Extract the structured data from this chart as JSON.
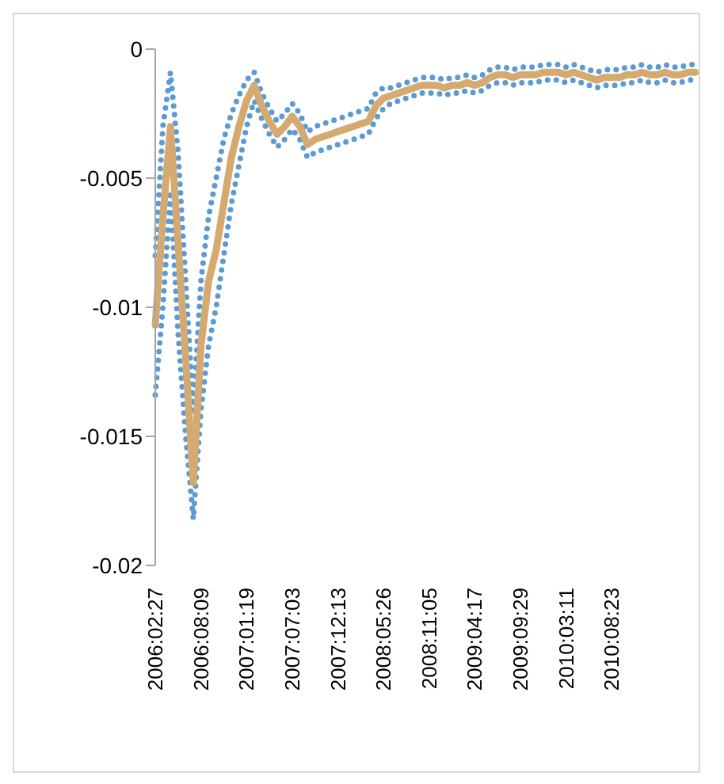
{
  "chart_data": {
    "type": "line",
    "marker": "none",
    "categories": [
      "2006:02:27",
      null,
      null,
      null,
      null,
      null,
      "2006:08:09",
      null,
      null,
      null,
      null,
      null,
      "2007:01:19",
      null,
      null,
      null,
      null,
      null,
      "2007:07:03",
      null,
      null,
      null,
      null,
      null,
      "2007:12:13",
      null,
      null,
      null,
      null,
      null,
      "2008:05:26",
      null,
      null,
      null,
      null,
      null,
      "2008:11:05",
      null,
      null,
      null,
      null,
      null,
      "2009:04:17",
      null,
      null,
      null,
      null,
      null,
      "2009:09:29",
      null,
      null,
      null,
      null,
      null,
      "2010:03:11",
      null,
      null,
      null,
      null,
      null,
      "2010:08:23",
      null,
      null,
      null,
      null,
      null,
      null,
      null,
      null,
      null,
      null,
      null
    ],
    "ylim": [
      -0.02,
      0
    ],
    "yticks": [
      -0.02,
      -0.015,
      -0.01,
      -0.005,
      0
    ],
    "series": [
      {
        "color": "#5b9bd5",
        "line_style": "dotted",
        "values": [
          -0.008,
          -0.003,
          -0.0009,
          -0.004,
          -0.009,
          -0.014,
          -0.009,
          -0.0065,
          -0.005,
          -0.0035,
          -0.0025,
          -0.0018,
          -0.0012,
          -0.0009,
          -0.0017,
          -0.0023,
          -0.0028,
          -0.0025,
          -0.0021,
          -0.0025,
          -0.0032,
          -0.003,
          -0.0029,
          -0.0028,
          -0.0027,
          -0.0026,
          -0.0025,
          -0.0024,
          -0.0023,
          -0.0017,
          -0.0015,
          -0.0015,
          -0.0014,
          -0.0013,
          -0.0012,
          -0.0011,
          -0.0011,
          -0.0011,
          -0.0012,
          -0.0011,
          -0.0011,
          -0.001,
          -0.0011,
          -0.001,
          -0.0008,
          -0.0007,
          -0.0007,
          -0.0008,
          -0.0007,
          -0.0007,
          -0.0007,
          -0.0006,
          -0.0006,
          -0.0006,
          -0.0007,
          -0.0006,
          -0.0007,
          -0.0008,
          -0.0009,
          -0.0008,
          -0.0008,
          -0.0008,
          -0.0007,
          -0.0007,
          -0.0006,
          -0.0007,
          -0.0007,
          -0.0006,
          -0.0007,
          -0.0007,
          -0.0006,
          -0.0006
        ]
      },
      {
        "color": "#5b9bd5",
        "line_style": "dotted",
        "values": [
          -0.0134,
          -0.01,
          -0.0055,
          -0.011,
          -0.015,
          -0.0182,
          -0.014,
          -0.0115,
          -0.01,
          -0.008,
          -0.006,
          -0.0045,
          -0.003,
          -0.002,
          -0.0027,
          -0.0033,
          -0.0038,
          -0.0035,
          -0.0031,
          -0.0035,
          -0.0042,
          -0.004,
          -0.0039,
          -0.0038,
          -0.0037,
          -0.0036,
          -0.0035,
          -0.0034,
          -0.0033,
          -0.0027,
          -0.0023,
          -0.0021,
          -0.002,
          -0.0019,
          -0.0018,
          -0.0017,
          -0.0017,
          -0.0017,
          -0.0018,
          -0.0017,
          -0.0017,
          -0.0016,
          -0.0017,
          -0.0016,
          -0.0014,
          -0.0013,
          -0.0013,
          -0.0014,
          -0.0013,
          -0.0013,
          -0.0013,
          -0.0012,
          -0.0012,
          -0.0012,
          -0.0013,
          -0.0012,
          -0.0013,
          -0.0014,
          -0.0015,
          -0.0014,
          -0.0014,
          -0.0014,
          -0.0013,
          -0.0013,
          -0.0012,
          -0.0013,
          -0.0013,
          -0.0012,
          -0.0013,
          -0.0013,
          -0.0012,
          -0.0012
        ]
      },
      {
        "color": "#d4aa70",
        "line_style": "solid",
        "values": [
          -0.0107,
          -0.0065,
          -0.003,
          -0.0075,
          -0.012,
          -0.0168,
          -0.0115,
          -0.009,
          -0.0078,
          -0.006,
          -0.0042,
          -0.003,
          -0.002,
          -0.0014,
          -0.0022,
          -0.0028,
          -0.0033,
          -0.003,
          -0.0026,
          -0.003,
          -0.0037,
          -0.0035,
          -0.0034,
          -0.0033,
          -0.0032,
          -0.0031,
          -0.003,
          -0.0029,
          -0.0028,
          -0.0022,
          -0.0019,
          -0.0018,
          -0.0017,
          -0.0016,
          -0.0015,
          -0.0014,
          -0.0014,
          -0.0014,
          -0.0015,
          -0.0014,
          -0.0014,
          -0.0013,
          -0.0014,
          -0.0013,
          -0.0011,
          -0.001,
          -0.001,
          -0.0011,
          -0.001,
          -0.001,
          -0.001,
          -0.0009,
          -0.0009,
          -0.0009,
          -0.001,
          -0.0009,
          -0.001,
          -0.0011,
          -0.0012,
          -0.0011,
          -0.0011,
          -0.0011,
          -0.001,
          -0.001,
          -0.0009,
          -0.001,
          -0.001,
          -0.0009,
          -0.001,
          -0.001,
          -0.0009,
          -0.0009
        ]
      }
    ]
  }
}
